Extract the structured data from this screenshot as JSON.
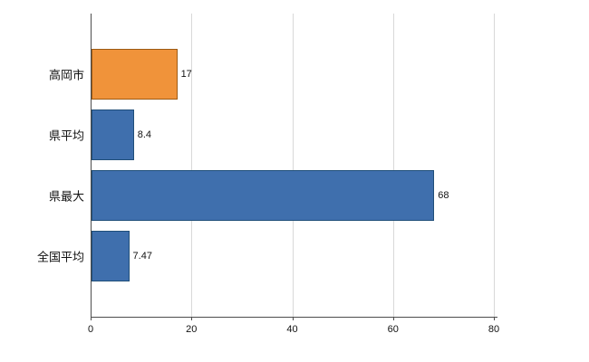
{
  "chart_data": {
    "type": "bar",
    "orientation": "horizontal",
    "title": "",
    "xlabel": "",
    "ylabel": "",
    "categories": [
      "高岡市",
      "県平均",
      "県最大",
      "全国平均"
    ],
    "values": [
      17,
      8.4,
      68,
      7.47
    ],
    "value_labels": [
      "17",
      "8.4",
      "68",
      "7.47"
    ],
    "bar_fills": [
      "#f0933a",
      "#3f6fad",
      "#3f6fad",
      "#3f6fad"
    ],
    "bar_borders": [
      "#9c5a14",
      "#1f4e79",
      "#1f4e79",
      "#1f4e79"
    ],
    "xlim": [
      0,
      80
    ],
    "xticks": [
      0,
      20,
      40,
      60,
      80
    ],
    "xtick_labels": [
      "0",
      "20",
      "40",
      "60",
      "80"
    ],
    "grid": true,
    "legend": "none",
    "background_color": "#ffffff",
    "gridline_color": "#d9d9d9",
    "axis_color": "#4d4d4d"
  }
}
